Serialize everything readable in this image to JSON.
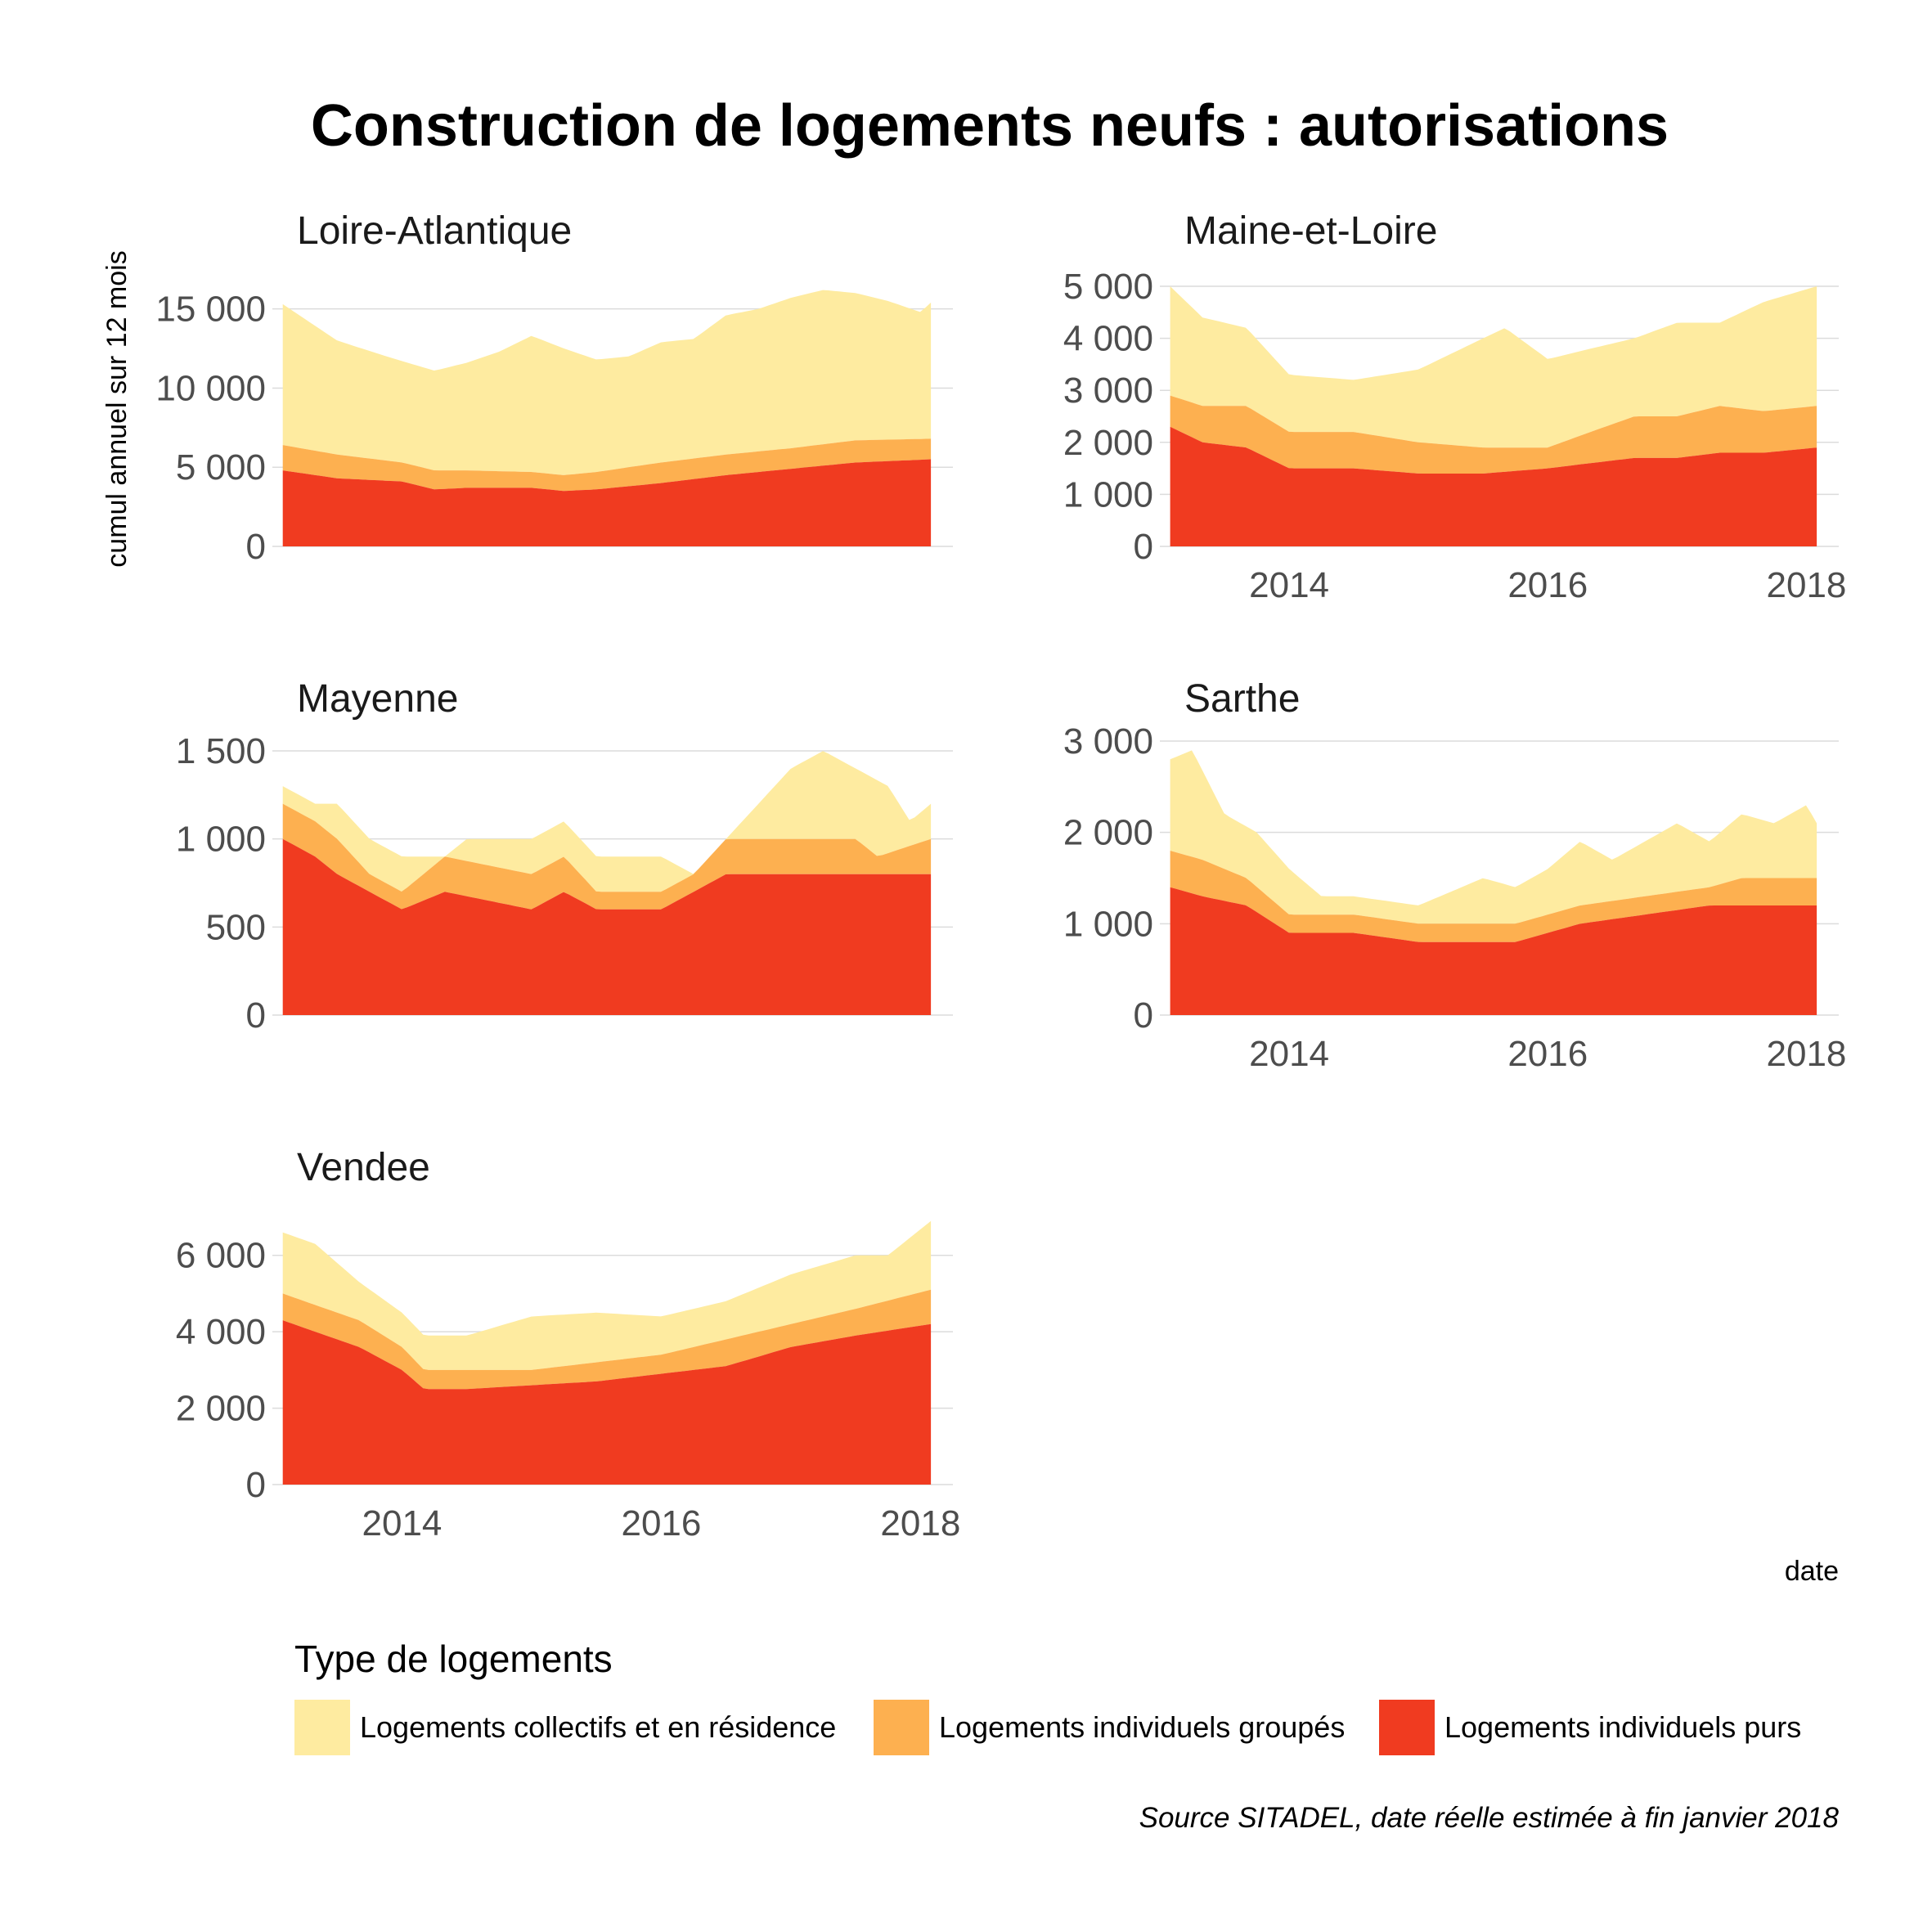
{
  "chart_data": {
    "type": "area",
    "stacked": true,
    "title": "Construction de logements neufs : autorisations",
    "ylabel": "cumul annuel sur 12 mois",
    "xlabel": "date",
    "caption": "Source SITADEL, date réelle estimée à fin janvier 2018",
    "legend": {
      "title": "Type de logements",
      "position": "bottom",
      "items": [
        {
          "key": "collectifs",
          "label": "Logements collectifs et en résidence",
          "color": "#FEEBA0"
        },
        {
          "key": "groupes",
          "label": "Logements individuels groupés",
          "color": "#FDB050"
        },
        {
          "key": "purs",
          "label": "Logements individuels purs",
          "color": "#F03B20"
        }
      ]
    },
    "x_start": "2013-02",
    "x_end": "2018-01",
    "x_ticks": [
      "2014",
      "2016",
      "2018"
    ],
    "grid": true,
    "panels": [
      {
        "name": "Loire-Atlantique",
        "ylim": [
          0,
          15500
        ],
        "y_ticks": [
          {
            "v": 0,
            "label": "0"
          },
          {
            "v": 5000,
            "label": "5 000"
          },
          {
            "v": 10000,
            "label": "10 000"
          },
          {
            "v": 15000,
            "label": "15 000"
          }
        ],
        "x_axis": false,
        "purs": [
          [
            2013.08,
            4800
          ],
          [
            2013.5,
            4300
          ],
          [
            2014,
            4100
          ],
          [
            2014.25,
            3600
          ],
          [
            2014.5,
            3700
          ],
          [
            2015,
            3700
          ],
          [
            2015.25,
            3500
          ],
          [
            2015.5,
            3600
          ],
          [
            2016,
            4000
          ],
          [
            2016.5,
            4500
          ],
          [
            2017,
            4900
          ],
          [
            2017.5,
            5300
          ],
          [
            2018.08,
            5500
          ]
        ],
        "total_ind": [
          [
            2013.08,
            6400
          ],
          [
            2013.5,
            5800
          ],
          [
            2014,
            5300
          ],
          [
            2014.25,
            4800
          ],
          [
            2014.5,
            4800
          ],
          [
            2015,
            4700
          ],
          [
            2015.25,
            4500
          ],
          [
            2015.5,
            4700
          ],
          [
            2016,
            5300
          ],
          [
            2016.5,
            5800
          ],
          [
            2017,
            6200
          ],
          [
            2017.5,
            6700
          ],
          [
            2018.08,
            6800
          ]
        ],
        "total": [
          [
            2013.08,
            15300
          ],
          [
            2013.5,
            13000
          ],
          [
            2013.92,
            11900
          ],
          [
            2014.25,
            11100
          ],
          [
            2014.5,
            11600
          ],
          [
            2014.75,
            12300
          ],
          [
            2015,
            13300
          ],
          [
            2015.25,
            12500
          ],
          [
            2015.5,
            11800
          ],
          [
            2015.75,
            12000
          ],
          [
            2016,
            12900
          ],
          [
            2016.25,
            13100
          ],
          [
            2016.5,
            14600
          ],
          [
            2016.75,
            15000
          ],
          [
            2017,
            15700
          ],
          [
            2017.25,
            16200
          ],
          [
            2017.5,
            16000
          ],
          [
            2017.75,
            15500
          ],
          [
            2018,
            14800
          ],
          [
            2018.08,
            15400
          ]
        ]
      },
      {
        "name": "Maine-et-Loire",
        "ylim": [
          0,
          5000
        ],
        "y_ticks": [
          {
            "v": 0,
            "label": "0"
          },
          {
            "v": 1000,
            "label": "1 000"
          },
          {
            "v": 2000,
            "label": "2 000"
          },
          {
            "v": 3000,
            "label": "3 000"
          },
          {
            "v": 4000,
            "label": "4 000"
          },
          {
            "v": 5000,
            "label": "5 000"
          }
        ],
        "x_axis": true,
        "purs": [
          [
            2013.08,
            2300
          ],
          [
            2013.33,
            2000
          ],
          [
            2013.67,
            1900
          ],
          [
            2014,
            1500
          ],
          [
            2014.5,
            1500
          ],
          [
            2015,
            1400
          ],
          [
            2015.5,
            1400
          ],
          [
            2016,
            1500
          ],
          [
            2016.33,
            1600
          ],
          [
            2016.67,
            1700
          ],
          [
            2017,
            1700
          ],
          [
            2017.33,
            1800
          ],
          [
            2017.67,
            1800
          ],
          [
            2018.08,
            1900
          ]
        ],
        "total_ind": [
          [
            2013.08,
            2900
          ],
          [
            2013.33,
            2700
          ],
          [
            2013.67,
            2700
          ],
          [
            2014,
            2200
          ],
          [
            2014.5,
            2200
          ],
          [
            2015,
            2000
          ],
          [
            2015.5,
            1900
          ],
          [
            2016,
            1900
          ],
          [
            2016.33,
            2200
          ],
          [
            2016.67,
            2500
          ],
          [
            2017,
            2500
          ],
          [
            2017.33,
            2700
          ],
          [
            2017.67,
            2600
          ],
          [
            2018.08,
            2700
          ]
        ],
        "total": [
          [
            2013.08,
            5000
          ],
          [
            2013.33,
            4400
          ],
          [
            2013.67,
            4200
          ],
          [
            2014,
            3300
          ],
          [
            2014.5,
            3200
          ],
          [
            2015,
            3400
          ],
          [
            2015.5,
            4000
          ],
          [
            2015.67,
            4200
          ],
          [
            2016,
            3600
          ],
          [
            2016.33,
            3800
          ],
          [
            2016.67,
            4000
          ],
          [
            2017,
            4300
          ],
          [
            2017.33,
            4300
          ],
          [
            2017.67,
            4700
          ],
          [
            2018.08,
            5000
          ]
        ]
      },
      {
        "name": "Mayenne",
        "ylim": [
          0,
          1500
        ],
        "y_ticks": [
          {
            "v": 0,
            "label": "0"
          },
          {
            "v": 500,
            "label": "500"
          },
          {
            "v": 1000,
            "label": "1 000"
          },
          {
            "v": 1500,
            "label": "1 500"
          }
        ],
        "x_axis": false,
        "purs": [
          [
            2013.08,
            1000
          ],
          [
            2013.33,
            900
          ],
          [
            2013.5,
            800
          ],
          [
            2013.75,
            700
          ],
          [
            2014,
            600
          ],
          [
            2014.33,
            700
          ],
          [
            2015,
            600
          ],
          [
            2015.25,
            700
          ],
          [
            2015.5,
            600
          ],
          [
            2016,
            600
          ],
          [
            2016.25,
            700
          ],
          [
            2016.5,
            800
          ],
          [
            2018.08,
            800
          ]
        ],
        "total_ind": [
          [
            2013.08,
            1200
          ],
          [
            2013.33,
            1100
          ],
          [
            2013.5,
            1000
          ],
          [
            2013.75,
            800
          ],
          [
            2014,
            700
          ],
          [
            2014.33,
            900
          ],
          [
            2015,
            800
          ],
          [
            2015.25,
            900
          ],
          [
            2015.5,
            700
          ],
          [
            2016,
            700
          ],
          [
            2016.25,
            800
          ],
          [
            2016.5,
            1000
          ],
          [
            2017.5,
            1000
          ],
          [
            2017.67,
            900
          ],
          [
            2018.08,
            1000
          ]
        ],
        "total": [
          [
            2013.08,
            1300
          ],
          [
            2013.33,
            1200
          ],
          [
            2013.5,
            1200
          ],
          [
            2013.75,
            1000
          ],
          [
            2014,
            900
          ],
          [
            2014.33,
            900
          ],
          [
            2014.5,
            1000
          ],
          [
            2015,
            1000
          ],
          [
            2015.25,
            1100
          ],
          [
            2015.5,
            900
          ],
          [
            2016,
            900
          ],
          [
            2016.25,
            800
          ],
          [
            2016.5,
            1000
          ],
          [
            2016.75,
            1200
          ],
          [
            2017,
            1400
          ],
          [
            2017.25,
            1500
          ],
          [
            2017.5,
            1400
          ],
          [
            2017.75,
            1300
          ],
          [
            2017.92,
            1100
          ],
          [
            2018.08,
            1200
          ]
        ]
      },
      {
        "name": "Sarthe",
        "ylim": [
          0,
          3000
        ],
        "y_ticks": [
          {
            "v": 0,
            "label": "0"
          },
          {
            "v": 1000,
            "label": "1 000"
          },
          {
            "v": 2000,
            "label": "2 000"
          },
          {
            "v": 3000,
            "label": "3 000"
          }
        ],
        "x_axis": true,
        "purs": [
          [
            2013.08,
            1400
          ],
          [
            2013.33,
            1300
          ],
          [
            2013.67,
            1200
          ],
          [
            2014,
            900
          ],
          [
            2014.5,
            900
          ],
          [
            2015,
            800
          ],
          [
            2015.5,
            800
          ],
          [
            2015.75,
            800
          ],
          [
            2016,
            900
          ],
          [
            2016.25,
            1000
          ],
          [
            2016.75,
            1100
          ],
          [
            2017.25,
            1200
          ],
          [
            2018.08,
            1200
          ]
        ],
        "total_ind": [
          [
            2013.08,
            1800
          ],
          [
            2013.33,
            1700
          ],
          [
            2013.67,
            1500
          ],
          [
            2014,
            1100
          ],
          [
            2014.5,
            1100
          ],
          [
            2015,
            1000
          ],
          [
            2015.5,
            1000
          ],
          [
            2015.75,
            1000
          ],
          [
            2016,
            1100
          ],
          [
            2016.25,
            1200
          ],
          [
            2016.75,
            1300
          ],
          [
            2017.25,
            1400
          ],
          [
            2017.5,
            1500
          ],
          [
            2017.75,
            1500
          ],
          [
            2018.08,
            1500
          ]
        ],
        "total": [
          [
            2013.08,
            2800
          ],
          [
            2013.25,
            2900
          ],
          [
            2013.5,
            2200
          ],
          [
            2013.75,
            2000
          ],
          [
            2014,
            1600
          ],
          [
            2014.25,
            1300
          ],
          [
            2014.5,
            1300
          ],
          [
            2015,
            1200
          ],
          [
            2015.5,
            1500
          ],
          [
            2015.75,
            1400
          ],
          [
            2016,
            1600
          ],
          [
            2016.25,
            1900
          ],
          [
            2016.5,
            1700
          ],
          [
            2016.75,
            1900
          ],
          [
            2017,
            2100
          ],
          [
            2017.25,
            1900
          ],
          [
            2017.5,
            2200
          ],
          [
            2017.75,
            2100
          ],
          [
            2018,
            2300
          ],
          [
            2018.08,
            2100
          ]
        ]
      },
      {
        "name": "Vendee",
        "ylim": [
          0,
          7000
        ],
        "y_ticks": [
          {
            "v": 0,
            "label": "0"
          },
          {
            "v": 2000,
            "label": "2 000"
          },
          {
            "v": 4000,
            "label": "4 000"
          },
          {
            "v": 6000,
            "label": "6 000"
          }
        ],
        "x_axis": true,
        "purs": [
          [
            2013.08,
            4300
          ],
          [
            2013.33,
            4000
          ],
          [
            2013.67,
            3600
          ],
          [
            2014,
            3000
          ],
          [
            2014.17,
            2500
          ],
          [
            2014.5,
            2500
          ],
          [
            2015,
            2600
          ],
          [
            2015.5,
            2700
          ],
          [
            2016,
            2900
          ],
          [
            2016.5,
            3100
          ],
          [
            2017,
            3600
          ],
          [
            2017.5,
            3900
          ],
          [
            2018.08,
            4200
          ]
        ],
        "total_ind": [
          [
            2013.08,
            5000
          ],
          [
            2013.33,
            4700
          ],
          [
            2013.67,
            4300
          ],
          [
            2014,
            3600
          ],
          [
            2014.17,
            3000
          ],
          [
            2014.5,
            3000
          ],
          [
            2015,
            3000
          ],
          [
            2015.5,
            3200
          ],
          [
            2016,
            3400
          ],
          [
            2016.5,
            3800
          ],
          [
            2017,
            4200
          ],
          [
            2017.5,
            4600
          ],
          [
            2018.08,
            5100
          ]
        ],
        "total": [
          [
            2013.08,
            6600
          ],
          [
            2013.33,
            6300
          ],
          [
            2013.67,
            5300
          ],
          [
            2014,
            4500
          ],
          [
            2014.17,
            3900
          ],
          [
            2014.5,
            3900
          ],
          [
            2015,
            4400
          ],
          [
            2015.5,
            4500
          ],
          [
            2016,
            4400
          ],
          [
            2016.5,
            4800
          ],
          [
            2017,
            5500
          ],
          [
            2017.5,
            6000
          ],
          [
            2017.75,
            6000
          ],
          [
            2018.08,
            6900
          ]
        ]
      }
    ]
  }
}
